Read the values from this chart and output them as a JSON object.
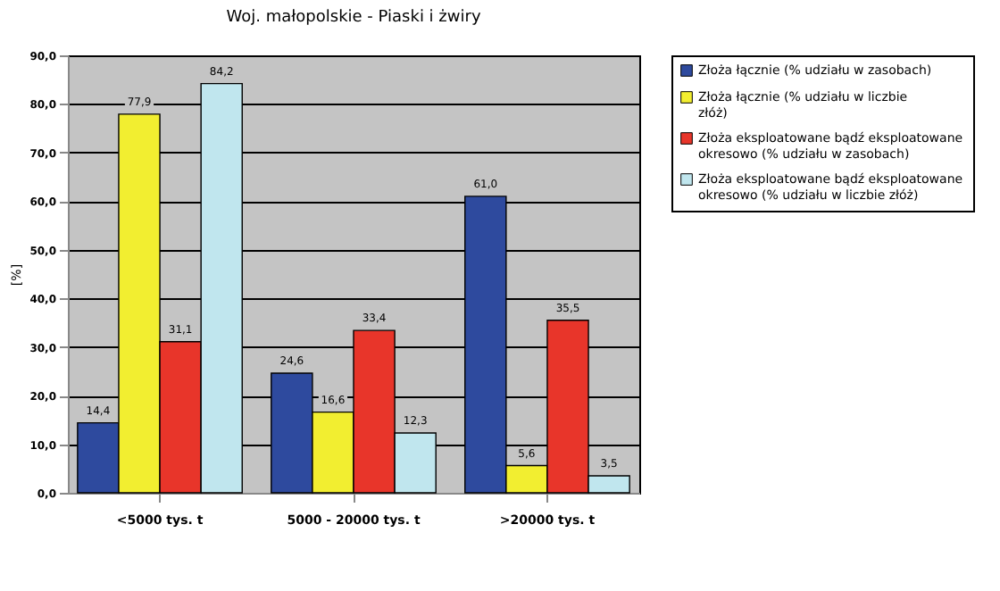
{
  "chart_data": {
    "type": "bar",
    "title": "Woj. małopolskie - Piaski i żwiry",
    "ylabel": "[%]",
    "categories": [
      "<5000 tys. t",
      "5000 - 20000 tys. t",
      ">20000 tys. t"
    ],
    "series": [
      {
        "name": "Złoża łącznie (% udziału w zasobach)",
        "color": "#2e4a9e",
        "values": [
          14.4,
          24.6,
          61.0
        ],
        "value_labels": [
          "14,4",
          "24,6",
          "61,0"
        ]
      },
      {
        "name": "Złoża łącznie (% udziału w liczbie złóż)",
        "color": "#f2ee30",
        "values": [
          77.9,
          16.6,
          5.6
        ],
        "value_labels": [
          "77,9",
          "16,6",
          "5,6"
        ]
      },
      {
        "name": "Złoża eksploatowane bądź eksploatowane okresowo (% udziału w zasobach)",
        "color": "#e8352a",
        "values": [
          31.1,
          33.4,
          35.5
        ],
        "value_labels": [
          "31,1",
          "33,4",
          "35,5"
        ]
      },
      {
        "name": "Złoża eksploatowane bądź eksploatowane okresowo (% udziału w liczbie złóż)",
        "color": "#c0e6ee",
        "values": [
          84.2,
          12.3,
          3.5
        ],
        "value_labels": [
          "84,2",
          "12,3",
          "3,5"
        ]
      }
    ],
    "ylim": [
      0,
      90
    ],
    "yticks": [
      {
        "value": 0,
        "label": "0,0"
      },
      {
        "value": 10,
        "label": "10,0"
      },
      {
        "value": 20,
        "label": "20,0"
      },
      {
        "value": 30,
        "label": "30,0"
      },
      {
        "value": 40,
        "label": "40,0"
      },
      {
        "value": 50,
        "label": "50,0"
      },
      {
        "value": 60,
        "label": "60,0"
      },
      {
        "value": 70,
        "label": "70,0"
      },
      {
        "value": 80,
        "label": "80,0"
      },
      {
        "value": 90,
        "label": "90,0"
      }
    ],
    "grid": "y",
    "legend": "right"
  }
}
